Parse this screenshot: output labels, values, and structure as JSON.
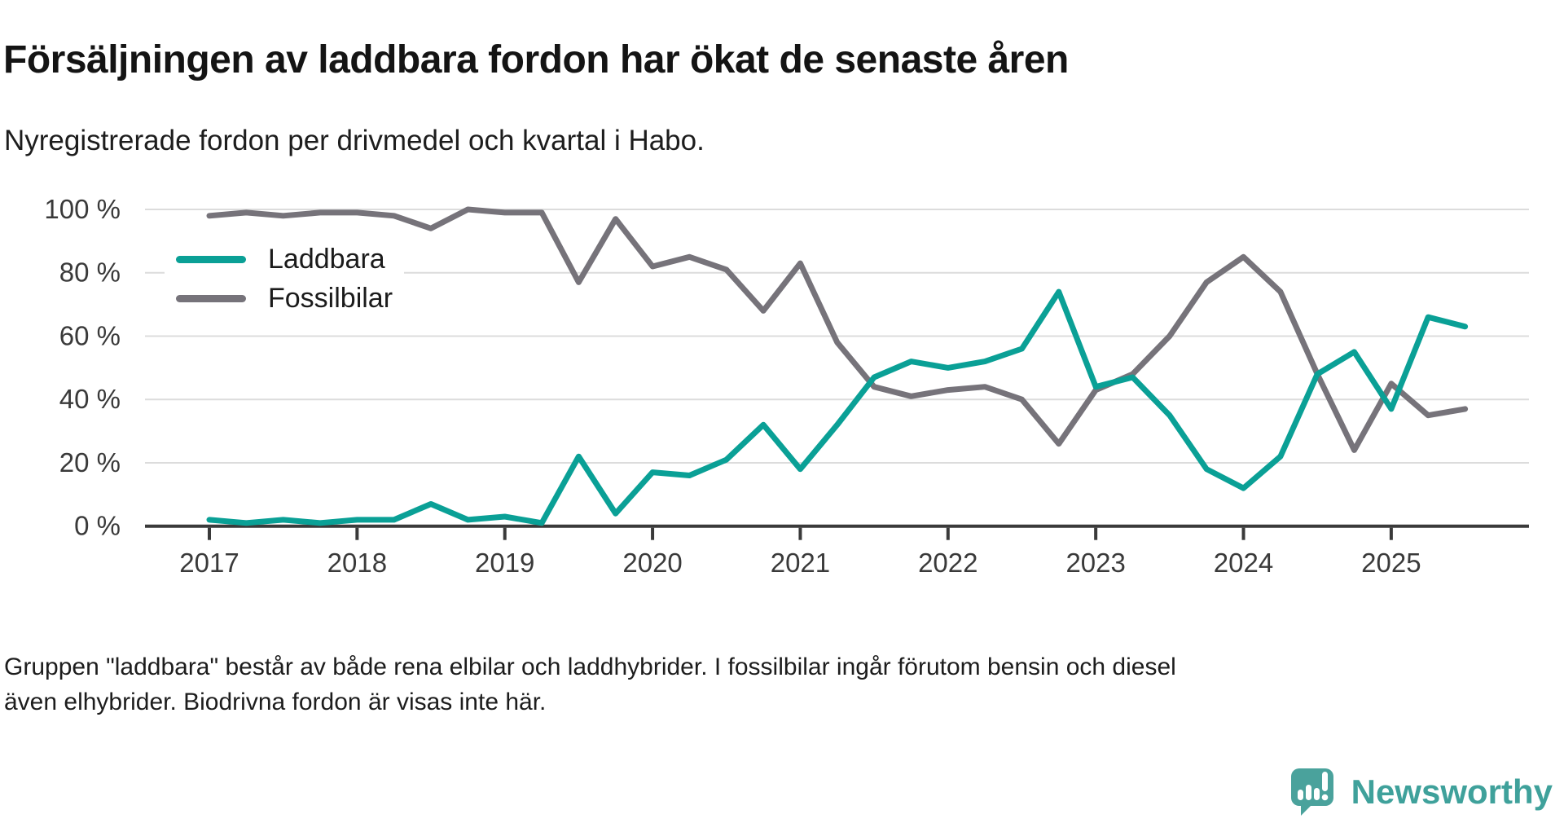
{
  "header": {
    "title": "Försäljningen av laddbara fordon har ökat de senaste åren",
    "subtitle": "Nyregistrerade fordon per drivmedel och kvartal i Habo."
  },
  "chart_data": {
    "type": "line",
    "unit": "%",
    "frequency": "quarterly",
    "start_period": "2017 Q1",
    "end_period": "2025 Q3",
    "x_tick_labels": [
      "2017",
      "2018",
      "2019",
      "2020",
      "2021",
      "2022",
      "2023",
      "2024",
      "2025"
    ],
    "y_tick_labels": [
      "100 %",
      "80 %",
      "60 %",
      "40 %",
      "20 %",
      "0 %"
    ],
    "y_gridline_values": [
      100,
      80,
      60,
      40,
      20,
      0
    ],
    "ylim": [
      0,
      100
    ],
    "grid": "horizontal",
    "legend_position": "top-left-inside",
    "series": [
      {
        "name": "Laddbara",
        "color": "#0aa096",
        "values": [
          2,
          1,
          2,
          1,
          2,
          2,
          7,
          2,
          3,
          1,
          22,
          4,
          17,
          16,
          21,
          32,
          18,
          32,
          47,
          52,
          50,
          52,
          56,
          74,
          44,
          47,
          35,
          18,
          12,
          22,
          48,
          55,
          37,
          66,
          63
        ]
      },
      {
        "name": "Fossilbilar",
        "color": "#76737a",
        "values": [
          98,
          99,
          98,
          99,
          99,
          98,
          94,
          100,
          99,
          99,
          77,
          97,
          82,
          85,
          81,
          68,
          83,
          58,
          44,
          41,
          43,
          44,
          40,
          26,
          43,
          48,
          60,
          77,
          85,
          74,
          48,
          24,
          45,
          35,
          37
        ]
      }
    ]
  },
  "footer": {
    "note": "Gruppen \"laddbara\" består av både rena elbilar och laddhybrider. I fossilbilar ingår förutom bensin och diesel även elhybrider. Biodrivna fordon är visas inte här."
  },
  "branding": {
    "logo_text": "Newsworthy",
    "logo_color": "#3fa19b",
    "icon_color": "#4aa29c",
    "icon": "newsworthy-speech-bubble-chart"
  }
}
